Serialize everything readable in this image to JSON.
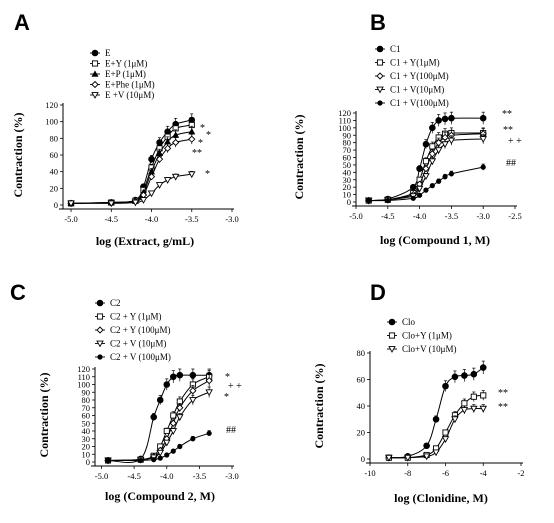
{
  "figure": {
    "panels": [
      {
        "id": "A",
        "letter": "A"
      },
      {
        "id": "B",
        "letter": "B"
      },
      {
        "id": "C",
        "letter": "C"
      },
      {
        "id": "D",
        "letter": "D"
      }
    ]
  },
  "chart_data": [
    {
      "panel": "A",
      "type": "line",
      "xlabel": "log (Extract, g/mL)",
      "ylabel": "Contraction (%)",
      "xlim": [
        -5.1,
        -3.0
      ],
      "ylim": [
        0,
        120
      ],
      "xticks": [
        -5.0,
        -4.5,
        -4.0,
        -3.5,
        -3.0
      ],
      "xtick_labels": [
        "-5.0",
        "-4.5",
        "-4.0",
        "-3.5",
        "-3.0"
      ],
      "yticks": [
        0,
        20,
        40,
        60,
        80,
        100,
        120
      ],
      "ytick_labels": [
        "0",
        "20",
        "40",
        "60",
        "80",
        "100",
        "120"
      ],
      "grid": false,
      "legend_position": "top-left",
      "series": [
        {
          "name": "E",
          "marker": "circle-filled",
          "x": [
            -5.0,
            -4.5,
            -4.2,
            -4.1,
            -4.0,
            -3.9,
            -3.8,
            -3.7,
            -3.5
          ],
          "y": [
            2,
            3,
            6,
            22,
            55,
            75,
            88,
            97,
            102
          ]
        },
        {
          "name": "E+Y (1μM)",
          "marker": "square-open",
          "x": [
            -5.0,
            -4.5,
            -4.2,
            -4.1,
            -4.0,
            -3.9,
            -3.8,
            -3.7,
            -3.5
          ],
          "y": [
            2,
            3,
            5,
            18,
            45,
            68,
            82,
            92,
            96
          ]
        },
        {
          "name": "E+P (1μM)",
          "marker": "triangle-filled",
          "x": [
            -5.0,
            -4.5,
            -4.2,
            -4.1,
            -4.0,
            -3.9,
            -3.8,
            -3.7,
            -3.5
          ],
          "y": [
            2,
            3,
            5,
            15,
            40,
            62,
            76,
            84,
            88
          ]
        },
        {
          "name": "E+Phe (1μM)",
          "marker": "diamond-open",
          "x": [
            -5.0,
            -4.5,
            -4.2,
            -4.1,
            -4.0,
            -3.9,
            -3.8,
            -3.7,
            -3.5
          ],
          "y": [
            2,
            3,
            4,
            12,
            34,
            55,
            68,
            75,
            79
          ]
        },
        {
          "name": "E +V (10μM)",
          "marker": "triangle-down-open",
          "x": [
            -5.0,
            -4.5,
            -4.2,
            -4.1,
            -4.0,
            -3.9,
            -3.8,
            -3.7,
            -3.5
          ],
          "y": [
            2,
            2,
            3,
            6,
            14,
            24,
            30,
            34,
            37
          ]
        }
      ],
      "annotations": [
        "*",
        "*",
        "*",
        "**",
        "*"
      ]
    },
    {
      "panel": "B",
      "type": "line",
      "xlabel": "log (Compound 1, M)",
      "ylabel": "Contraction (%)",
      "xlim": [
        -5.0,
        -2.5
      ],
      "ylim": [
        0,
        120
      ],
      "xticks": [
        -5.0,
        -4.5,
        -4.0,
        -3.5,
        -3.0,
        -2.5
      ],
      "xtick_labels": [
        "-5.0",
        "-4.5",
        "-4.0",
        "-3.5",
        "-3.0",
        "-2.5"
      ],
      "yticks": [
        0,
        10,
        20,
        30,
        40,
        50,
        60,
        70,
        80,
        90,
        100,
        110,
        120
      ],
      "ytick_labels": [
        "0",
        "10",
        "20",
        "30",
        "40",
        "50",
        "60",
        "70",
        "80",
        "90",
        "100",
        "110",
        "120"
      ],
      "grid": false,
      "legend_position": "top-left",
      "series": [
        {
          "name": "C1",
          "marker": "circle-filled",
          "x": [
            -4.8,
            -4.5,
            -4.1,
            -4.0,
            -3.9,
            -3.8,
            -3.7,
            -3.6,
            -3.5,
            -3.0
          ],
          "y": [
            2,
            4,
            20,
            45,
            78,
            100,
            110,
            112,
            113,
            113
          ]
        },
        {
          "name": "C1 + Y(1μM)",
          "marker": "square-open",
          "x": [
            -4.8,
            -4.5,
            -4.1,
            -4.0,
            -3.9,
            -3.8,
            -3.7,
            -3.6,
            -3.5,
            -3.0
          ],
          "y": [
            2,
            3,
            12,
            30,
            55,
            75,
            87,
            92,
            93,
            93
          ]
        },
        {
          "name": "C1 + Y(100μM)",
          "marker": "diamond-open",
          "x": [
            -4.8,
            -4.5,
            -4.1,
            -4.0,
            -3.9,
            -3.8,
            -3.7,
            -3.6,
            -3.5,
            -3.0
          ],
          "y": [
            2,
            3,
            10,
            24,
            45,
            65,
            80,
            87,
            90,
            92
          ]
        },
        {
          "name": "C1 + V(10μM)",
          "marker": "triangle-down-open",
          "x": [
            -4.8,
            -4.5,
            -4.1,
            -4.0,
            -3.9,
            -3.8,
            -3.7,
            -3.6,
            -3.5,
            -3.0
          ],
          "y": [
            2,
            3,
            8,
            18,
            35,
            55,
            70,
            78,
            83,
            85
          ]
        },
        {
          "name": "C1 + V(100μM)",
          "marker": "circle-filled-small",
          "x": [
            -4.8,
            -4.5,
            -4.1,
            -4.0,
            -3.9,
            -3.8,
            -3.7,
            -3.6,
            -3.5,
            -3.0
          ],
          "y": [
            2,
            2,
            5,
            9,
            16,
            22,
            28,
            34,
            38,
            47
          ]
        }
      ],
      "annotations": [
        "**",
        "**",
        "+ +",
        "##"
      ]
    },
    {
      "panel": "C",
      "type": "line",
      "xlabel": "log (Compound 2, M)",
      "ylabel": "Contraction (%)",
      "xlim": [
        -5.1,
        -3.0
      ],
      "ylim": [
        0,
        120
      ],
      "xticks": [
        -5.0,
        -4.5,
        -4.0,
        -3.5,
        -3.0
      ],
      "xtick_labels": [
        "-5.0",
        "-4.5",
        "-4.0",
        "-3.5",
        "-3.0"
      ],
      "yticks": [
        0,
        10,
        20,
        30,
        40,
        50,
        60,
        70,
        80,
        90,
        100,
        110,
        120
      ],
      "ytick_labels": [
        "0",
        "10",
        "20",
        "30",
        "40",
        "50",
        "60",
        "70",
        "80",
        "90",
        "100",
        "110",
        "120"
      ],
      "grid": false,
      "legend_position": "top-left",
      "series": [
        {
          "name": "C2",
          "marker": "circle-filled",
          "x": [
            -4.9,
            -4.4,
            -4.2,
            -4.1,
            -4.0,
            -3.9,
            -3.8,
            -3.6,
            -3.35
          ],
          "y": [
            2,
            4,
            58,
            80,
            100,
            110,
            112,
            112,
            112
          ]
        },
        {
          "name": "C2 + Y (1μM)",
          "marker": "square-open",
          "x": [
            -4.9,
            -4.4,
            -4.2,
            -4.1,
            -4.0,
            -3.9,
            -3.8,
            -3.6,
            -3.35
          ],
          "y": [
            2,
            3,
            8,
            20,
            40,
            60,
            78,
            100,
            110
          ]
        },
        {
          "name": "C2 + Y (100μM)",
          "marker": "diamond-open",
          "x": [
            -4.9,
            -4.4,
            -4.2,
            -4.1,
            -4.0,
            -3.9,
            -3.8,
            -3.6,
            -3.35
          ],
          "y": [
            2,
            3,
            7,
            15,
            30,
            50,
            70,
            92,
            105
          ]
        },
        {
          "name": "C2 + V (10μM)",
          "marker": "triangle-down-open",
          "x": [
            -4.9,
            -4.4,
            -4.2,
            -4.1,
            -4.0,
            -3.9,
            -3.8,
            -3.6,
            -3.35
          ],
          "y": [
            2,
            3,
            6,
            12,
            25,
            40,
            58,
            80,
            90
          ]
        },
        {
          "name": "C2 + V (100μM)",
          "marker": "circle-filled-small",
          "x": [
            -4.9,
            -4.4,
            -4.2,
            -4.1,
            -4.0,
            -3.9,
            -3.8,
            -3.6,
            -3.35
          ],
          "y": [
            2,
            2,
            3,
            5,
            9,
            14,
            20,
            30,
            37
          ]
        }
      ],
      "annotations": [
        "*",
        "+ +",
        "*",
        "##"
      ]
    },
    {
      "panel": "D",
      "type": "line",
      "xlabel": "log (Clonidine, M)",
      "ylabel": "Contraction (%)",
      "xlim": [
        -10,
        -2
      ],
      "ylim": [
        0,
        80
      ],
      "xticks": [
        -10,
        -8,
        -6,
        -4,
        -2
      ],
      "xtick_labels": [
        "-10",
        "-8",
        "-6",
        "-4",
        "-2"
      ],
      "yticks": [
        0,
        20,
        40,
        60,
        80
      ],
      "ytick_labels": [
        "0",
        "20",
        "40",
        "60",
        "80"
      ],
      "grid": false,
      "legend_position": "top-left",
      "series": [
        {
          "name": "Clo",
          "marker": "circle-filled",
          "x": [
            -9,
            -8,
            -7,
            -6.5,
            -6,
            -5.5,
            -5,
            -4.5,
            -4
          ],
          "y": [
            1,
            2,
            10,
            30,
            55,
            62,
            63,
            64,
            69
          ]
        },
        {
          "name": "Clo+Y (1μM)",
          "marker": "square-open",
          "x": [
            -9,
            -8,
            -7,
            -6.5,
            -6,
            -5.5,
            -5,
            -4.5,
            -4
          ],
          "y": [
            1,
            1,
            3,
            8,
            20,
            33,
            42,
            47,
            48
          ]
        },
        {
          "name": "Clo+V (10μM)",
          "marker": "triangle-down-open",
          "x": [
            -9,
            -8,
            -7,
            -6.5,
            -6,
            -5.5,
            -5,
            -4.5,
            -4
          ],
          "y": [
            1,
            1,
            2,
            5,
            15,
            30,
            37,
            38,
            38
          ]
        }
      ],
      "annotations": [
        "**",
        "**"
      ]
    }
  ]
}
